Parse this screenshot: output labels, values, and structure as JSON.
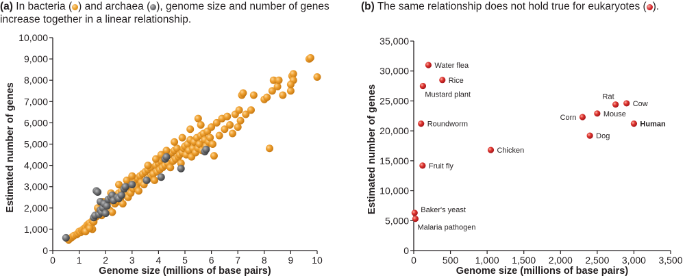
{
  "captions": {
    "a": {
      "tag": "(a)",
      "part1": " In bacteria (",
      "part2": ") and archaea (",
      "part3": "), genome size and number of genes increase together in a linear relationship."
    },
    "b": {
      "tag": "(b)",
      "part1": " The same relationship does not hold true for eukaryotes (",
      "part2": ")."
    }
  },
  "colors": {
    "bacteria": "#e8991f",
    "archaea": "#6d6e71",
    "eukaryotes": "#d2232a",
    "axis": "#231f20"
  },
  "chart_data": [
    {
      "type": "scatter",
      "title": "(a) In bacteria and archaea, genome size and number of genes increase together in a linear relationship.",
      "xlabel": "Genome size (millions of base pairs)",
      "ylabel": "Estimated number of genes",
      "xlim": [
        0,
        10
      ],
      "ylim": [
        0,
        10000
      ],
      "xticks": [
        "0",
        "1",
        "2",
        "3",
        "4",
        "5",
        "6",
        "7",
        "8",
        "9",
        "10"
      ],
      "yticks": [
        "0",
        "1,000",
        "2,000",
        "3,000",
        "4,000",
        "5,000",
        "6,000",
        "7,000",
        "8,000",
        "9,000",
        "10,000"
      ],
      "xtick_values": [
        0,
        1,
        2,
        3,
        4,
        5,
        6,
        7,
        8,
        9,
        10
      ],
      "ytick_values": [
        0,
        1000,
        2000,
        3000,
        4000,
        5000,
        6000,
        7000,
        8000,
        9000,
        10000
      ],
      "grid": false,
      "series": [
        {
          "name": "Bacteria",
          "color": "#e8991f",
          "points": [
            [
              0.6,
              500
            ],
            [
              0.7,
              600
            ],
            [
              0.75,
              650
            ],
            [
              0.8,
              700
            ],
            [
              0.9,
              750
            ],
            [
              0.95,
              800
            ],
            [
              1.0,
              900
            ],
            [
              1.05,
              850
            ],
            [
              1.1,
              950
            ],
            [
              1.15,
              1000
            ],
            [
              1.2,
              1050
            ],
            [
              1.25,
              1100
            ],
            [
              1.3,
              1200
            ],
            [
              1.35,
              1250
            ],
            [
              1.4,
              1300
            ],
            [
              1.45,
              1200
            ],
            [
              1.5,
              1400
            ],
            [
              1.5,
              1000
            ],
            [
              1.55,
              1500
            ],
            [
              1.6,
              1550
            ],
            [
              1.25,
              900
            ],
            [
              1.4,
              1050
            ],
            [
              1.55,
              1350
            ],
            [
              1.65,
              1600
            ],
            [
              1.7,
              1700
            ],
            [
              1.75,
              1800
            ],
            [
              1.8,
              1900
            ],
            [
              1.85,
              1650
            ],
            [
              1.9,
              2000
            ],
            [
              1.95,
              2100
            ],
            [
              2.0,
              2200
            ],
            [
              2.05,
              2000
            ],
            [
              2.1,
              2300
            ],
            [
              2.15,
              1900
            ],
            [
              2.2,
              2400
            ],
            [
              2.25,
              1800
            ],
            [
              2.3,
              2500
            ],
            [
              2.35,
              2200
            ],
            [
              2.4,
              2600
            ],
            [
              2.45,
              2300
            ],
            [
              2.5,
              2700
            ],
            [
              2.55,
              2400
            ],
            [
              2.6,
              2800
            ],
            [
              2.65,
              2200
            ],
            [
              2.7,
              2900
            ],
            [
              2.75,
              2600
            ],
            [
              2.8,
              3000
            ],
            [
              2.85,
              2500
            ],
            [
              2.9,
              3100
            ],
            [
              2.95,
              2700
            ],
            [
              3.0,
              3200
            ],
            [
              3.05,
              2900
            ],
            [
              3.1,
              3300
            ],
            [
              3.15,
              3000
            ],
            [
              3.2,
              3400
            ],
            [
              3.25,
              2800
            ],
            [
              3.3,
              3500
            ],
            [
              3.35,
              3200
            ],
            [
              3.4,
              3600
            ],
            [
              3.45,
              3100
            ],
            [
              3.5,
              3700
            ],
            [
              3.55,
              3300
            ],
            [
              3.6,
              3800
            ],
            [
              3.65,
              3400
            ],
            [
              3.7,
              3900
            ],
            [
              3.75,
              3500
            ],
            [
              3.8,
              3600
            ],
            [
              3.85,
              3300
            ],
            [
              3.9,
              4000
            ],
            [
              3.95,
              3700
            ],
            [
              4.0,
              4100
            ],
            [
              4.05,
              3800
            ],
            [
              4.1,
              4200
            ],
            [
              4.15,
              3900
            ],
            [
              4.2,
              4300
            ],
            [
              4.25,
              4000
            ],
            [
              4.3,
              4400
            ],
            [
              4.35,
              4100
            ],
            [
              4.4,
              4500
            ],
            [
              4.45,
              3900
            ],
            [
              4.5,
              4600
            ],
            [
              4.55,
              4200
            ],
            [
              4.6,
              4700
            ],
            [
              4.65,
              4300
            ],
            [
              4.7,
              4800
            ],
            [
              4.75,
              4400
            ],
            [
              4.8,
              4500
            ],
            [
              4.85,
              4100
            ],
            [
              4.9,
              4600
            ],
            [
              4.95,
              4800
            ],
            [
              5.0,
              4900
            ],
            [
              5.05,
              4500
            ],
            [
              5.1,
              5000
            ],
            [
              5.15,
              4700
            ],
            [
              5.2,
              5200
            ],
            [
              5.25,
              4400
            ],
            [
              5.3,
              4800
            ],
            [
              5.35,
              5100
            ],
            [
              5.4,
              4600
            ],
            [
              5.45,
              5300
            ],
            [
              5.5,
              4800
            ],
            [
              5.55,
              5000
            ],
            [
              5.6,
              5400
            ],
            [
              5.65,
              4700
            ],
            [
              5.7,
              5500
            ],
            [
              5.75,
              5200
            ],
            [
              5.8,
              4900
            ],
            [
              5.85,
              5600
            ],
            [
              5.9,
              5100
            ],
            [
              5.95,
              5300
            ],
            [
              6.0,
              5800
            ],
            [
              6.1,
              4450
            ],
            [
              6.05,
              5000
            ],
            [
              6.2,
              6000
            ],
            [
              6.3,
              5400
            ],
            [
              6.4,
              6200
            ],
            [
              6.5,
              5700
            ],
            [
              6.6,
              6300
            ],
            [
              6.7,
              5900
            ],
            [
              6.8,
              5500
            ],
            [
              6.9,
              6400
            ],
            [
              7.0,
              5800
            ],
            [
              7.05,
              6600
            ],
            [
              7.1,
              6100
            ],
            [
              7.15,
              7300
            ],
            [
              7.2,
              7400
            ],
            [
              7.3,
              6400
            ],
            [
              7.5,
              6600
            ],
            [
              7.6,
              7300
            ],
            [
              8.0,
              7100
            ],
            [
              8.1,
              7200
            ],
            [
              8.2,
              4800
            ],
            [
              8.3,
              7500
            ],
            [
              8.35,
              8000
            ],
            [
              8.5,
              7700
            ],
            [
              8.55,
              8000
            ],
            [
              8.7,
              7300
            ],
            [
              9.0,
              7500
            ],
            [
              9.05,
              8200
            ],
            [
              9.1,
              8300
            ],
            [
              9.1,
              8000
            ],
            [
              9.0,
              7800
            ],
            [
              9.7,
              9000
            ],
            [
              9.75,
              9050
            ],
            [
              10.0,
              8150
            ],
            [
              5.2,
              5700
            ],
            [
              5.5,
              6200
            ],
            [
              4.3,
              4700
            ],
            [
              4.6,
              5100
            ],
            [
              3.9,
              4300
            ],
            [
              2.8,
              3300
            ],
            [
              3.0,
              3500
            ],
            [
              3.6,
              4000
            ],
            [
              2.2,
              2700
            ],
            [
              1.7,
              2000
            ],
            [
              1.9,
              2300
            ],
            [
              2.5,
              3100
            ],
            [
              4.1,
              4500
            ],
            [
              4.9,
              5300
            ],
            [
              5.6,
              5900
            ]
          ]
        },
        {
          "name": "Archaea",
          "color": "#6d6e71",
          "points": [
            [
              0.5,
              600
            ],
            [
              1.55,
              1550
            ],
            [
              1.6,
              1650
            ],
            [
              1.65,
              2800
            ],
            [
              1.7,
              2750
            ],
            [
              1.75,
              1700
            ],
            [
              1.8,
              1900
            ],
            [
              1.8,
              2300
            ],
            [
              1.85,
              1800
            ],
            [
              1.9,
              2000
            ],
            [
              1.95,
              2200
            ],
            [
              2.0,
              1750
            ],
            [
              2.05,
              2100
            ],
            [
              2.1,
              2400
            ],
            [
              2.2,
              2500
            ],
            [
              2.25,
              2600
            ],
            [
              2.3,
              2350
            ],
            [
              2.45,
              2500
            ],
            [
              2.5,
              2450
            ],
            [
              2.6,
              2600
            ],
            [
              2.7,
              2900
            ],
            [
              2.75,
              3000
            ],
            [
              3.0,
              3100
            ],
            [
              3.55,
              3300
            ],
            [
              4.1,
              3450
            ],
            [
              4.25,
              4300
            ],
            [
              4.3,
              4400
            ],
            [
              4.85,
              3850
            ],
            [
              5.75,
              4650
            ],
            [
              5.8,
              4750
            ]
          ]
        }
      ]
    },
    {
      "type": "scatter",
      "title": "(b) The same relationship does not hold true for eukaryotes.",
      "xlabel": "Genome size (millions of base pairs)",
      "ylabel": "Estimated number of genes",
      "xlim": [
        0,
        3500
      ],
      "ylim": [
        0,
        35000
      ],
      "xticks": [
        "0",
        "500",
        "1,000",
        "1,500",
        "2,000",
        "2,500",
        "3,000",
        "3,500"
      ],
      "yticks": [
        "0",
        "5,000",
        "10,000",
        "15,000",
        "20,000",
        "25,000",
        "30,000",
        "35,000"
      ],
      "xtick_values": [
        0,
        500,
        1000,
        1500,
        2000,
        2500,
        3000,
        3500
      ],
      "ytick_values": [
        0,
        5000,
        10000,
        15000,
        20000,
        25000,
        30000,
        35000
      ],
      "grid": false,
      "series": [
        {
          "name": "Eukaryotes",
          "color": "#d2232a",
          "points": [
            {
              "label": "Water flea",
              "x": 200,
              "y": 31000,
              "label_pos": "right"
            },
            {
              "label": "Rice",
              "x": 390,
              "y": 28500,
              "label_pos": "right"
            },
            {
              "label": "Mustard plant",
              "x": 125,
              "y": 27500,
              "label_pos": "below-right"
            },
            {
              "label": "Roundworm",
              "x": 100,
              "y": 21200,
              "label_pos": "right"
            },
            {
              "label": "Fruit fly",
              "x": 120,
              "y": 14200,
              "label_pos": "right"
            },
            {
              "label": "Chicken",
              "x": 1050,
              "y": 16800,
              "label_pos": "right"
            },
            {
              "label": "Baker's yeast",
              "x": 12,
              "y": 6300,
              "label_pos": "above-right"
            },
            {
              "label": "Malaria pathogen",
              "x": 23,
              "y": 5300,
              "label_pos": "below-right"
            },
            {
              "label": "Corn",
              "x": 2300,
              "y": 22300,
              "label_pos": "left"
            },
            {
              "label": "Mouse",
              "x": 2500,
              "y": 22900,
              "label_pos": "right"
            },
            {
              "label": "Rat",
              "x": 2750,
              "y": 24400,
              "label_pos": "above-left"
            },
            {
              "label": "Cow",
              "x": 2900,
              "y": 24600,
              "label_pos": "right"
            },
            {
              "label": "Human",
              "x": 3000,
              "y": 21200,
              "label_pos": "right",
              "bold": true
            },
            {
              "label": "Dog",
              "x": 2400,
              "y": 19200,
              "label_pos": "right"
            }
          ]
        }
      ]
    }
  ]
}
